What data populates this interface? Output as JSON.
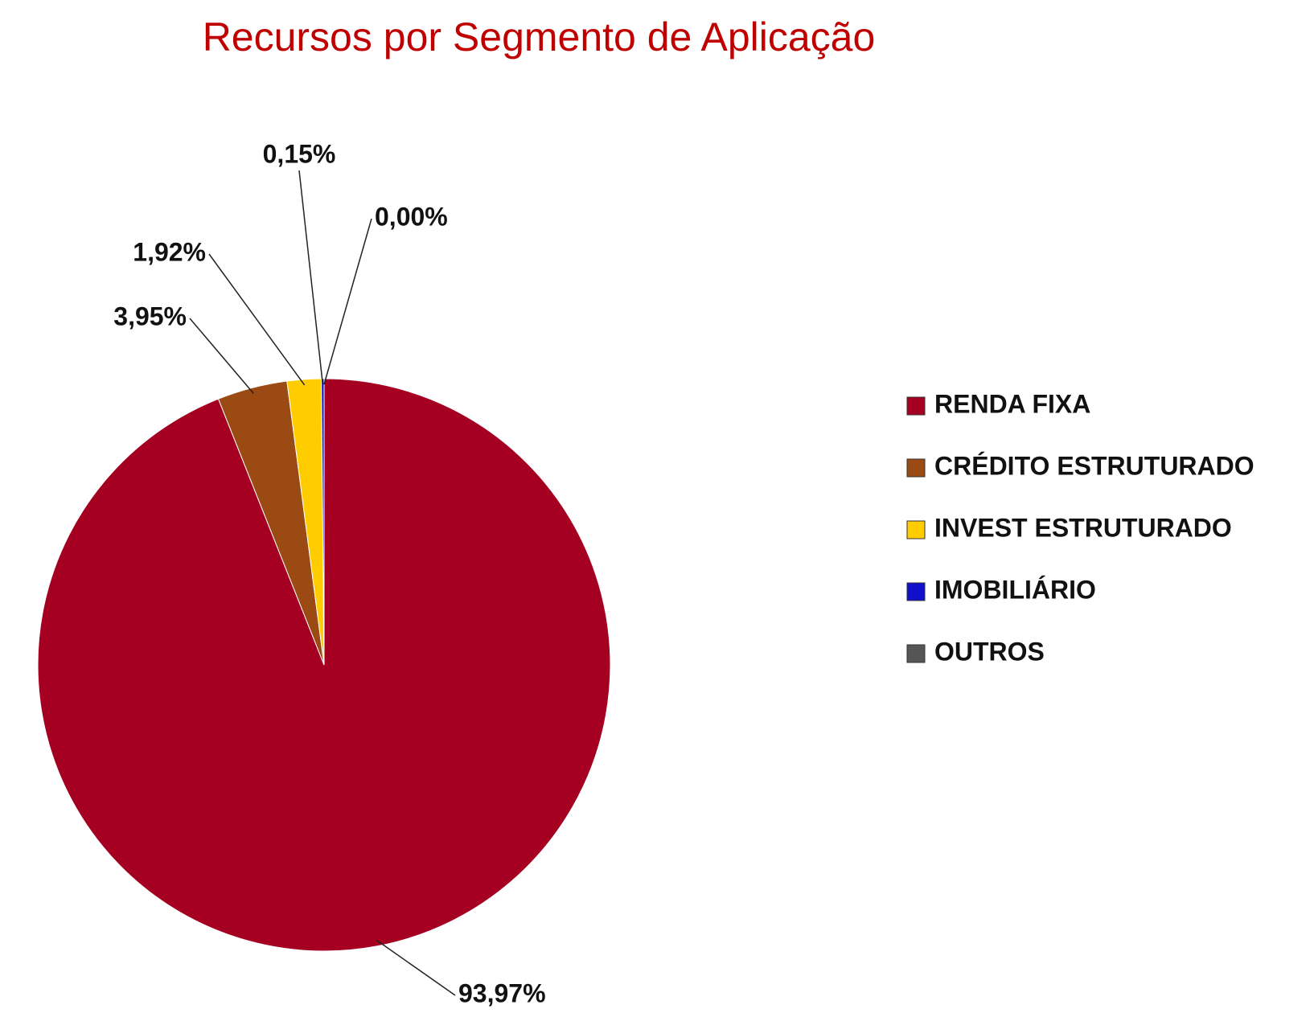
{
  "chart_data": {
    "type": "pie",
    "title": "Recursos por Segmento de Aplicação",
    "categories": [
      "RENDA FIXA",
      "CRÉDITO ESTRUTURADO",
      "INVEST ESTRUTURADO",
      "IMOBILIÁRIO",
      "OUTROS"
    ],
    "values": [
      93.97,
      3.95,
      1.92,
      0.15,
      0.0
    ],
    "value_labels": [
      "93,97%",
      "3,95%",
      "1,92%",
      "0,15%",
      "0,00%"
    ],
    "colors": [
      "#a50021",
      "#9a4a12",
      "#ffcc00",
      "#1010cc",
      "#555555"
    ],
    "legend": "right"
  }
}
